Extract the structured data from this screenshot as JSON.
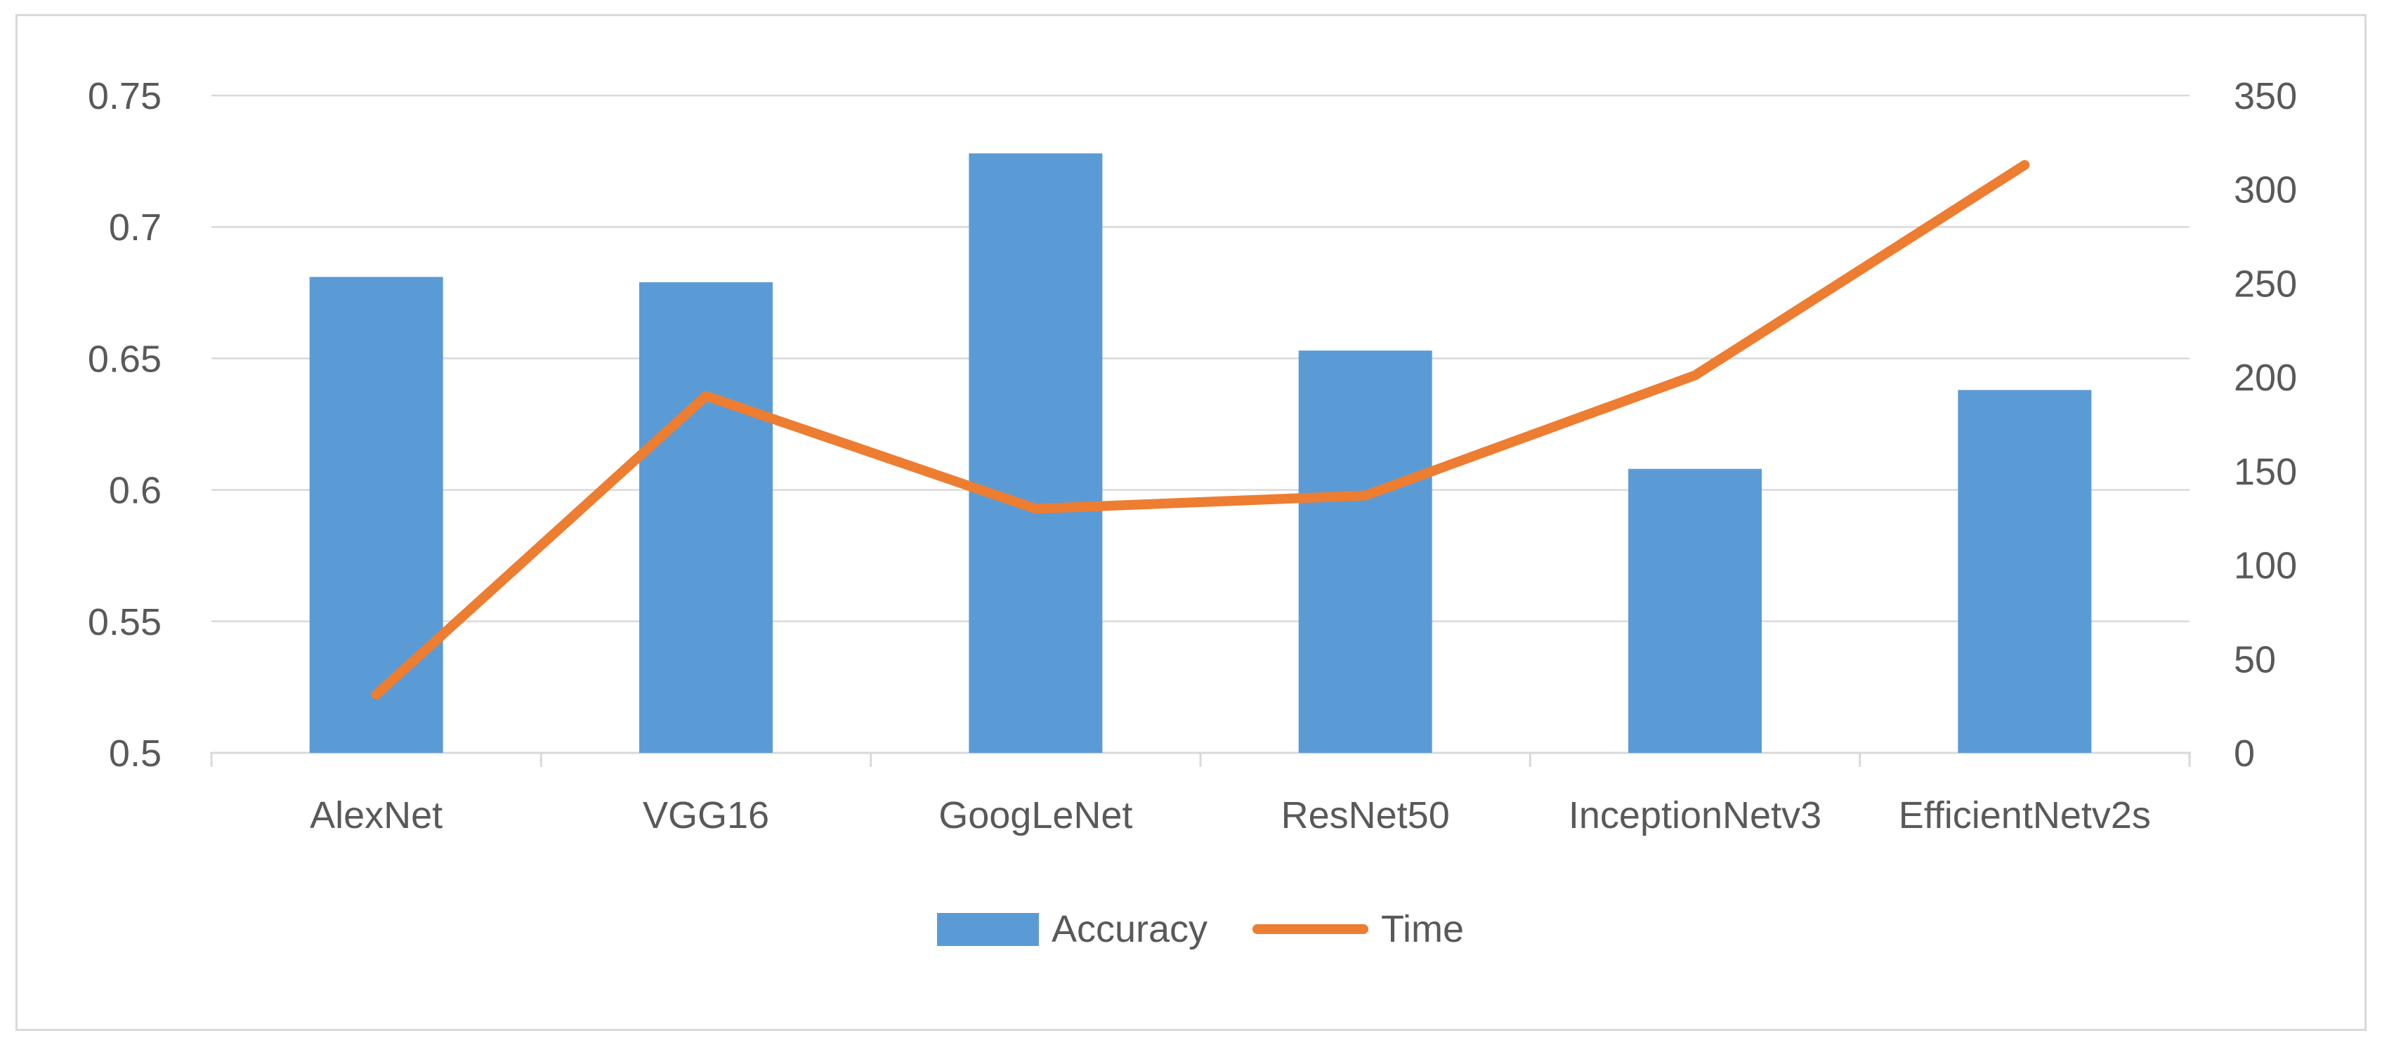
{
  "colors": {
    "bar": "#5B9BD5",
    "line": "#ED7D31",
    "grid": "#D9D9D9",
    "axis": "#D9D9D9",
    "text": "#595959",
    "frame": "#D9D9D9",
    "background": "#FFFFFF"
  },
  "legend": {
    "items": [
      {
        "label": "Accuracy",
        "marker": "bar-swatch"
      },
      {
        "label": "Time",
        "marker": "line-swatch"
      }
    ]
  },
  "chart_data": {
    "type": "combo",
    "categories": [
      "AlexNet",
      "VGG16",
      "GoogLeNet",
      "ResNet50",
      "InceptionNetv3",
      "EfficientNetv2s"
    ],
    "series": [
      {
        "name": "Accuracy",
        "type": "bar",
        "axis": "left",
        "values": [
          0.681,
          0.679,
          0.728,
          0.653,
          0.608,
          0.638
        ]
      },
      {
        "name": "Time",
        "type": "line",
        "axis": "right",
        "values": [
          31,
          190,
          130,
          137,
          201,
          313
        ]
      }
    ],
    "left_axis": {
      "min": 0.5,
      "max": 0.75,
      "tick_labels": [
        "0.75",
        "0.7",
        "0.65",
        "0.6",
        "0.55",
        "0.5"
      ],
      "tick_values": [
        0.75,
        0.7,
        0.65,
        0.6,
        0.55,
        0.5
      ]
    },
    "right_axis": {
      "min": 0,
      "max": 350,
      "tick_labels": [
        "350",
        "300",
        "250",
        "200",
        "150",
        "100",
        "50",
        "0"
      ],
      "tick_values": [
        350,
        300,
        250,
        200,
        150,
        100,
        50,
        0
      ]
    },
    "gridlines": true,
    "legend_position": "bottom-center",
    "title": ""
  }
}
